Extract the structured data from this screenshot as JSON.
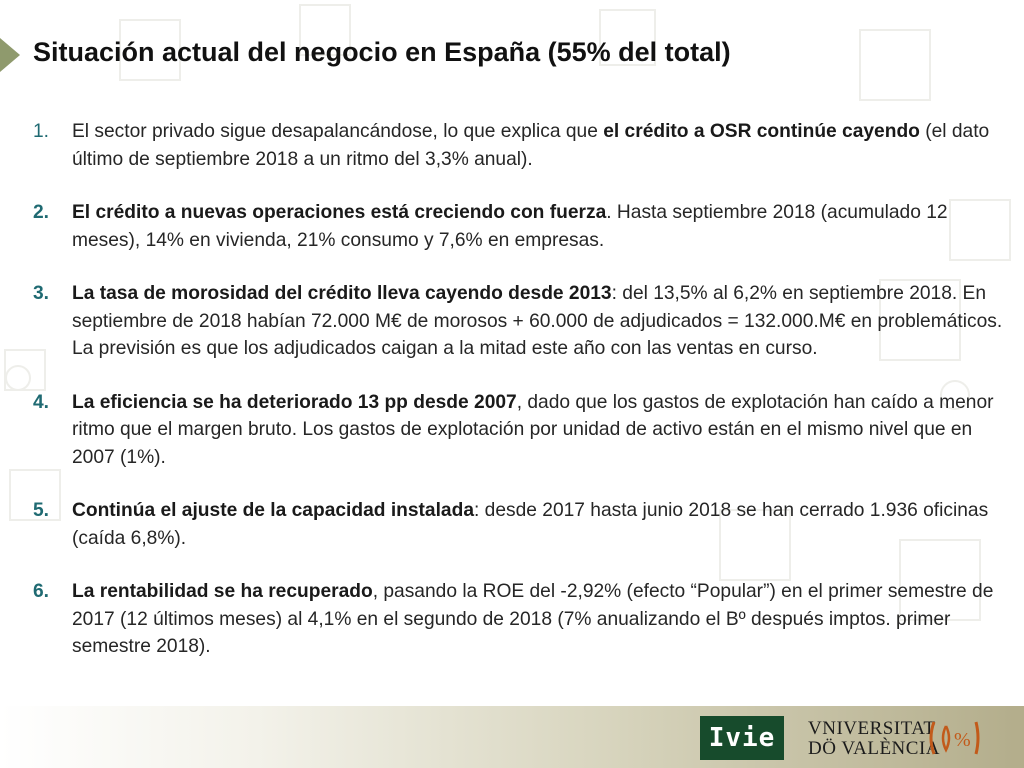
{
  "slide": {
    "title": "Situación actual del negocio en España (55% del total)",
    "items": [
      {
        "number": "1.",
        "parts": [
          {
            "t": "El sector privado sigue desapalancándose, lo que explica que ",
            "b": false
          },
          {
            "t": "el crédito a OSR continúe cayendo",
            "b": true
          },
          {
            "t": " (el dato último de septiembre 2018 a un ritmo del 3,3% anual).",
            "b": false
          }
        ]
      },
      {
        "number": "2.",
        "parts": [
          {
            "t": "El crédito a nuevas operaciones está creciendo con fuerza",
            "b": true
          },
          {
            "t": ". Hasta septiembre 2018 (acumulado 12 meses), 14% en vivienda, 21% consumo y 7,6% en empresas.",
            "b": false
          }
        ]
      },
      {
        "number": "3.",
        "parts": [
          {
            "t": "La tasa de morosidad del crédito lleva cayendo desde 2013",
            "b": true
          },
          {
            "t": ": del 13,5% al 6,2% en septiembre 2018. En septiembre de 2018 habían 72.000 M€ de morosos + 60.000 de adjudicados = 132.000.M€ en problemáticos. La previsión es que los adjudicados caigan a la mitad este año con las ventas en curso.",
            "b": false
          }
        ]
      },
      {
        "number": "4.",
        "parts": [
          {
            "t": "La eficiencia se ha deteriorado 13 pp desde 2007",
            "b": true
          },
          {
            "t": ", dado que los gastos de explotación han caído a menor ritmo que el margen bruto. Los gastos de explotación por unidad de activo están en el mismo nivel que en 2007 (1%).",
            "b": false
          }
        ]
      },
      {
        "number": "5.",
        "parts": [
          {
            "t": "Continúa el ajuste de la capacidad instalada",
            "b": true
          },
          {
            "t": ": desde 2017 hasta junio 2018 se han cerrado 1.936 oficinas (caída 6,8%).",
            "b": false
          }
        ]
      },
      {
        "number": "6.",
        "parts": [
          {
            "t": "La rentabilidad se ha recuperado",
            "b": true
          },
          {
            "t": ", pasando la ROE del -2,92% (efecto “Popular”) en el primer semestre de 2017 (12 últimos meses) al 4,1% en el segundo de 2018 (7% anualizando el Bº después imptos. primer semestre 2018).",
            "b": false
          }
        ]
      }
    ]
  },
  "footer": {
    "ivie_logo": "Ivie",
    "university_line1": "VNIVERSITAT",
    "university_line2": "DÖ VALÈNCIA",
    "brand_green": "#174b2c"
  }
}
